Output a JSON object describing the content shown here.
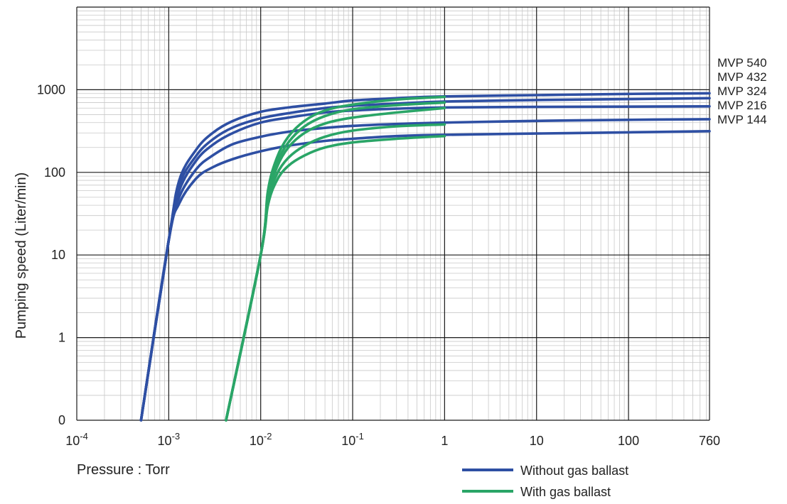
{
  "chart_data": {
    "type": "line",
    "xlabel": "Pressure : Torr",
    "ylabel": "Pumping speed (Liter/min)",
    "x_scale": "log",
    "y_scale": "log",
    "xlim": [
      0.0001,
      760
    ],
    "ylim": [
      0.1,
      10000
    ],
    "x_ticks": [
      {
        "value": 0.0001,
        "base": "10",
        "exp": "-4"
      },
      {
        "value": 0.001,
        "base": "10",
        "exp": "-3"
      },
      {
        "value": 0.01,
        "base": "10",
        "exp": "-2"
      },
      {
        "value": 0.1,
        "base": "10",
        "exp": "-1"
      },
      {
        "value": 1,
        "label": "1"
      },
      {
        "value": 10,
        "label": "10"
      },
      {
        "value": 100,
        "label": "100"
      },
      {
        "value": 760,
        "label": "760"
      }
    ],
    "y_ticks": [
      {
        "value": 0.1,
        "label": "0"
      },
      {
        "value": 1,
        "label": "1"
      },
      {
        "value": 10,
        "label": "10"
      },
      {
        "value": 100,
        "label": "100"
      },
      {
        "value": 1000,
        "label": "1000"
      }
    ],
    "grid": true,
    "legend": {
      "placement": "bottom-right",
      "entries": [
        {
          "label": "Without gas ballast",
          "color": "#2e4fa3"
        },
        {
          "label": "With gas ballast",
          "color": "#2aa567"
        }
      ]
    },
    "colors": {
      "without": "#2e4fa3",
      "with": "#2aa567",
      "grid_major": "#1a1a1a",
      "grid_minor": "#c8c8c8"
    },
    "series": [
      {
        "name": "MVP 540",
        "gas_ballast": false,
        "points": [
          [
            0.0005,
            0.1
          ],
          [
            0.001,
            15
          ],
          [
            0.0013,
            80
          ],
          [
            0.002,
            190
          ],
          [
            0.003,
            300
          ],
          [
            0.005,
            420
          ],
          [
            0.01,
            540
          ],
          [
            0.02,
            610
          ],
          [
            0.05,
            680
          ],
          [
            0.1,
            740
          ],
          [
            0.3,
            790
          ],
          [
            1,
            830
          ],
          [
            10,
            860
          ],
          [
            100,
            890
          ],
          [
            760,
            905
          ]
        ]
      },
      {
        "name": "MVP 432",
        "gas_ballast": false,
        "points": [
          [
            0.0005,
            0.1
          ],
          [
            0.001,
            15
          ],
          [
            0.0013,
            70
          ],
          [
            0.002,
            160
          ],
          [
            0.003,
            250
          ],
          [
            0.005,
            350
          ],
          [
            0.01,
            450
          ],
          [
            0.02,
            520
          ],
          [
            0.05,
            600
          ],
          [
            0.1,
            640
          ],
          [
            0.3,
            680
          ],
          [
            1,
            720
          ],
          [
            10,
            750
          ],
          [
            100,
            770
          ],
          [
            760,
            790
          ]
        ]
      },
      {
        "name": "MVP 324",
        "gas_ballast": false,
        "points": [
          [
            0.0005,
            0.1
          ],
          [
            0.001,
            15
          ],
          [
            0.0013,
            60
          ],
          [
            0.002,
            140
          ],
          [
            0.003,
            215
          ],
          [
            0.005,
            300
          ],
          [
            0.01,
            400
          ],
          [
            0.02,
            460
          ],
          [
            0.05,
            530
          ],
          [
            0.1,
            560
          ],
          [
            0.3,
            590
          ],
          [
            1,
            610
          ],
          [
            10,
            620
          ],
          [
            100,
            625
          ],
          [
            760,
            630
          ]
        ]
      },
      {
        "name": "MVP 216",
        "gas_ballast": false,
        "points": [
          [
            0.0005,
            0.1
          ],
          [
            0.001,
            15
          ],
          [
            0.0013,
            50
          ],
          [
            0.002,
            110
          ],
          [
            0.003,
            160
          ],
          [
            0.005,
            220
          ],
          [
            0.01,
            270
          ],
          [
            0.02,
            310
          ],
          [
            0.05,
            345
          ],
          [
            0.1,
            365
          ],
          [
            0.3,
            385
          ],
          [
            1,
            400
          ],
          [
            10,
            420
          ],
          [
            100,
            432
          ],
          [
            760,
            440
          ]
        ]
      },
      {
        "name": "MVP 144",
        "gas_ballast": false,
        "points": [
          [
            0.0005,
            0.1
          ],
          [
            0.001,
            15
          ],
          [
            0.0013,
            42
          ],
          [
            0.002,
            85
          ],
          [
            0.003,
            115
          ],
          [
            0.005,
            145
          ],
          [
            0.01,
            180
          ],
          [
            0.02,
            210
          ],
          [
            0.05,
            240
          ],
          [
            0.1,
            255
          ],
          [
            0.3,
            275
          ],
          [
            1,
            285
          ],
          [
            10,
            295
          ],
          [
            100,
            305
          ],
          [
            760,
            315
          ]
        ]
      },
      {
        "name": "MVP 540",
        "gas_ballast": true,
        "points": [
          [
            0.0042,
            0.1
          ],
          [
            0.01,
            10
          ],
          [
            0.012,
            60
          ],
          [
            0.015,
            150
          ],
          [
            0.02,
            270
          ],
          [
            0.03,
            420
          ],
          [
            0.05,
            560
          ],
          [
            0.1,
            660
          ],
          [
            0.3,
            760
          ],
          [
            1,
            820
          ]
        ]
      },
      {
        "name": "MVP 432",
        "gas_ballast": true,
        "points": [
          [
            0.0042,
            0.1
          ],
          [
            0.01,
            10
          ],
          [
            0.012,
            55
          ],
          [
            0.015,
            130
          ],
          [
            0.02,
            230
          ],
          [
            0.03,
            360
          ],
          [
            0.05,
            480
          ],
          [
            0.1,
            580
          ],
          [
            0.3,
            650
          ],
          [
            1,
            700
          ]
        ]
      },
      {
        "name": "MVP 324",
        "gas_ballast": true,
        "points": [
          [
            0.0042,
            0.1
          ],
          [
            0.01,
            10
          ],
          [
            0.012,
            50
          ],
          [
            0.015,
            115
          ],
          [
            0.02,
            200
          ],
          [
            0.03,
            300
          ],
          [
            0.05,
            390
          ],
          [
            0.1,
            460
          ],
          [
            0.3,
            530
          ],
          [
            1,
            600
          ]
        ]
      },
      {
        "name": "MVP 216",
        "gas_ballast": true,
        "points": [
          [
            0.0042,
            0.1
          ],
          [
            0.01,
            10
          ],
          [
            0.012,
            45
          ],
          [
            0.015,
            95
          ],
          [
            0.02,
            150
          ],
          [
            0.03,
            210
          ],
          [
            0.05,
            270
          ],
          [
            0.1,
            320
          ],
          [
            0.3,
            360
          ],
          [
            1,
            380
          ]
        ]
      },
      {
        "name": "MVP 144",
        "gas_ballast": true,
        "points": [
          [
            0.0042,
            0.1
          ],
          [
            0.01,
            10
          ],
          [
            0.012,
            40
          ],
          [
            0.015,
            80
          ],
          [
            0.02,
            120
          ],
          [
            0.03,
            160
          ],
          [
            0.05,
            200
          ],
          [
            0.1,
            230
          ],
          [
            0.3,
            255
          ],
          [
            1,
            275
          ]
        ]
      }
    ],
    "series_labels": [
      "MVP 540",
      "MVP 432",
      "MVP 324",
      "MVP 216",
      "MVP 144"
    ]
  }
}
